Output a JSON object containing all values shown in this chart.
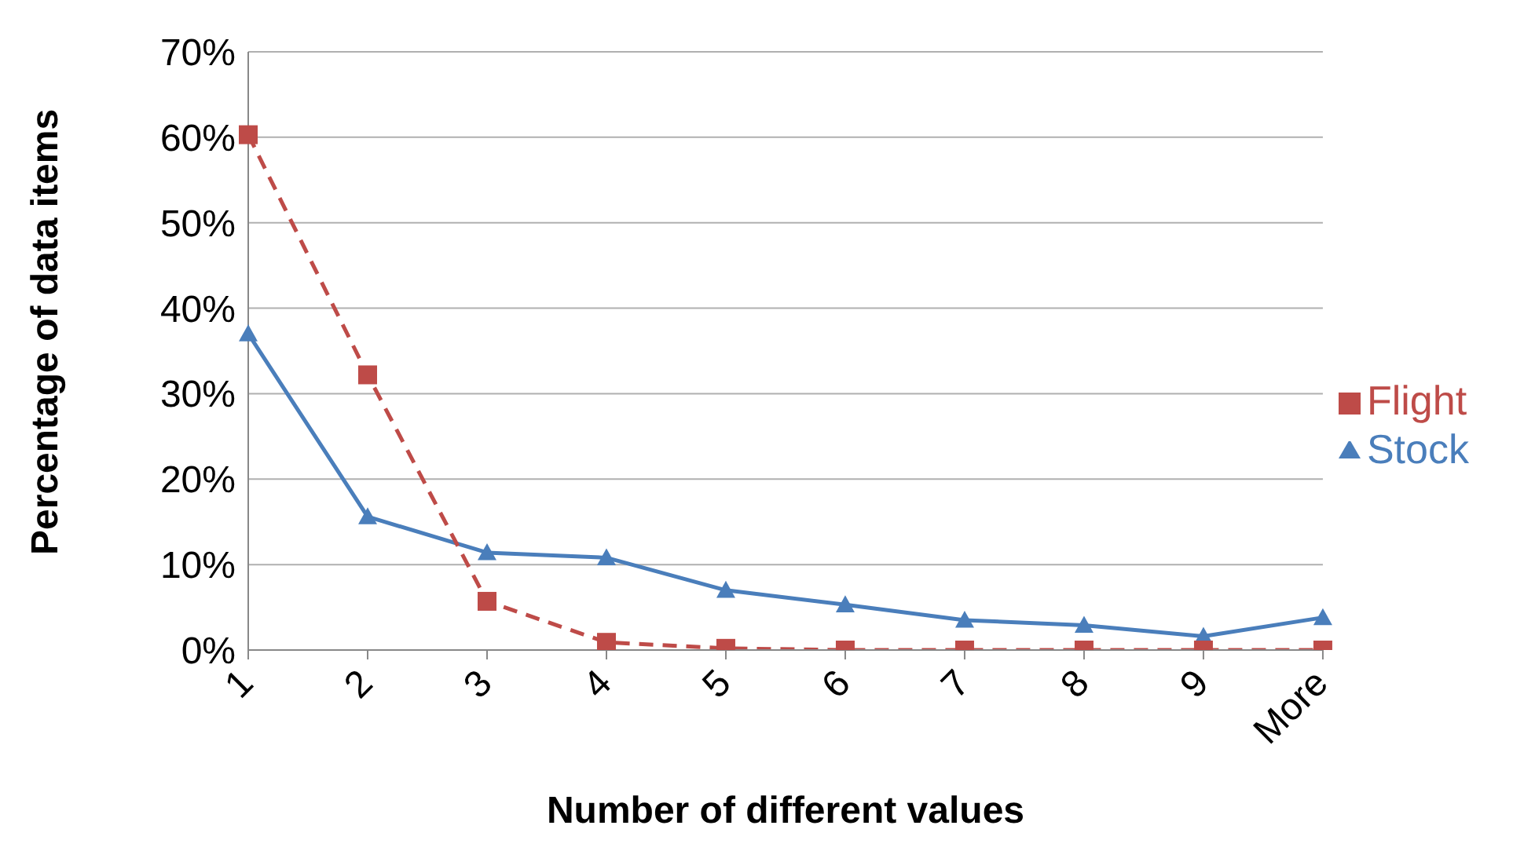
{
  "chart_data": {
    "type": "line",
    "xlabel": "Number of different values",
    "ylabel": "Percentage of data items",
    "categories": [
      "1",
      "2",
      "3",
      "4",
      "5",
      "6",
      "7",
      "8",
      "9",
      "More"
    ],
    "series": [
      {
        "name": "Stock",
        "color": "#4a7ebb",
        "marker": "triangle",
        "line_style": "solid",
        "values": [
          37,
          15.6,
          11.4,
          10.8,
          7,
          5.3,
          3.5,
          2.9,
          1.6,
          3.8
        ]
      },
      {
        "name": "Flight",
        "color": "#be4b48",
        "marker": "square",
        "line_style": "dashed",
        "values": [
          60.3,
          32.2,
          5.7,
          0.9,
          0.2,
          0,
          0,
          0,
          0,
          0
        ]
      }
    ],
    "ylim": [
      0,
      70
    ],
    "yticks": [
      {
        "value": 0,
        "label": "0%"
      },
      {
        "value": 10,
        "label": "10%"
      },
      {
        "value": 20,
        "label": "20%"
      },
      {
        "value": 30,
        "label": "30%"
      },
      {
        "value": 40,
        "label": "40%"
      },
      {
        "value": 50,
        "label": "50%"
      },
      {
        "value": 60,
        "label": "60%"
      },
      {
        "value": 70,
        "label": "70%"
      }
    ],
    "grid": "y",
    "legend": "right"
  }
}
